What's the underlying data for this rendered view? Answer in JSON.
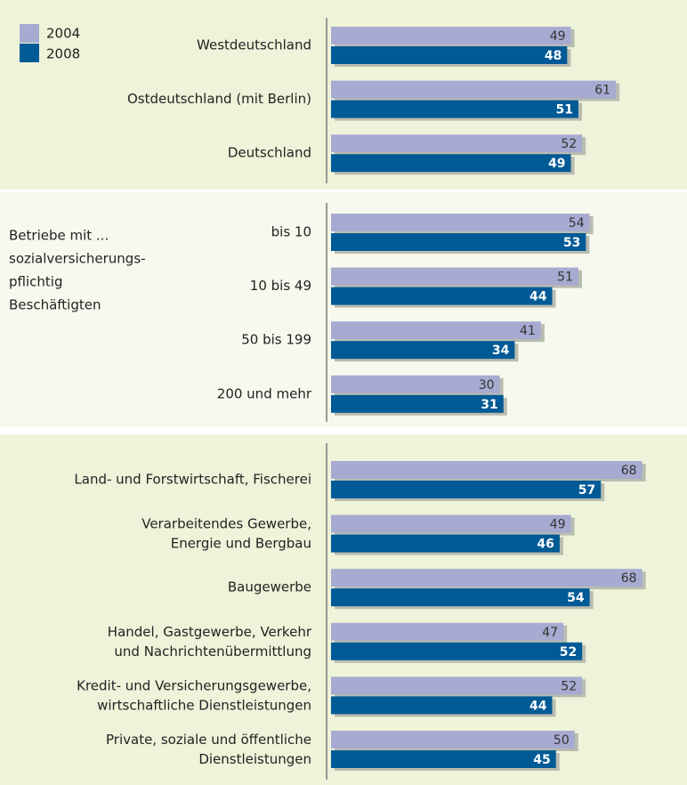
{
  "chart_data": [
    {
      "type": "bar",
      "orientation": "horizontal",
      "xlim": [
        -15,
        70
      ],
      "categories": [
        "Westdeutschland",
        "Ostdeutschland (mit Berlin)",
        "Deutschland"
      ],
      "series": [
        {
          "name": "2004",
          "color": "#a7abd1",
          "values": [
            49,
            61,
            52
          ]
        },
        {
          "name": "2008",
          "color": "#005a96",
          "values": [
            48,
            51,
            49
          ]
        }
      ]
    },
    {
      "type": "bar",
      "orientation": "horizontal",
      "xlim": [
        -15,
        70
      ],
      "label": [
        "Betriebe mit ...",
        "sozialversicherungs-",
        "pflichtig",
        "Beschäftigten"
      ],
      "categories": [
        "bis 10",
        "10 bis 49",
        "50 bis 199",
        "200 und mehr"
      ],
      "series": [
        {
          "name": "2004",
          "color": "#a7abd1",
          "values": [
            54,
            51,
            41,
            30
          ]
        },
        {
          "name": "2008",
          "color": "#005a96",
          "values": [
            53,
            44,
            34,
            31
          ]
        }
      ]
    },
    {
      "type": "bar",
      "orientation": "horizontal",
      "xlim": [
        -15,
        70
      ],
      "categories": [
        "Land- und Forstwirtschaft, Fischerei",
        "Verarbeitendes Gewerbe,\nEnergie und Bergbau",
        "Baugewerbe",
        "Handel, Gastgewerbe, Verkehr\nund Nachrichtenübermittlung",
        "Kredit- und Versicherungsgewerbe,\nwirtschaftliche Dienstleistungen",
        "Private, soziale und öffentliche\nDienstleistungen"
      ],
      "series": [
        {
          "name": "2004",
          "color": "#a7abd1",
          "values": [
            68,
            49,
            68,
            47,
            52,
            50
          ]
        },
        {
          "name": "2008",
          "color": "#005a96",
          "values": [
            57,
            46,
            54,
            52,
            44,
            45
          ]
        }
      ]
    }
  ]
}
